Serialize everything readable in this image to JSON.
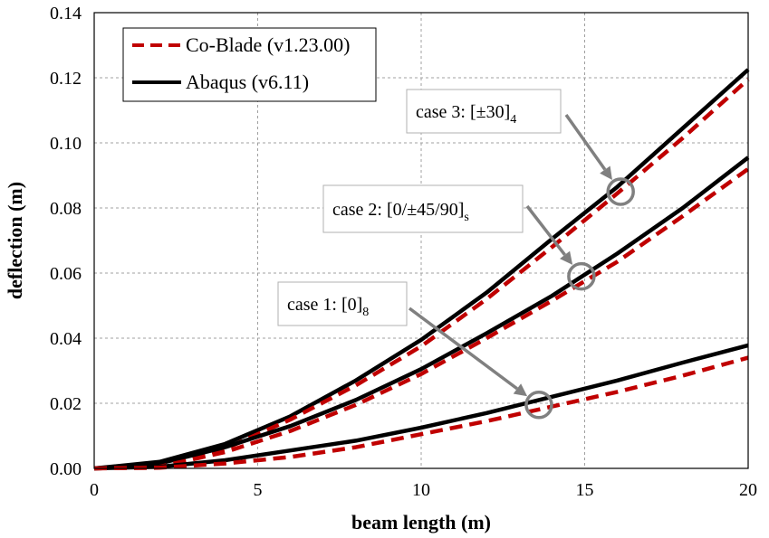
{
  "chart_data": {
    "type": "line",
    "title": "",
    "xlabel": "beam length (m)",
    "ylabel": "deflection (m)",
    "xlim": [
      0,
      20
    ],
    "ylim": [
      0,
      0.14
    ],
    "xticks": [
      "0",
      "5",
      "10",
      "15",
      "20"
    ],
    "yticks": [
      "0.00",
      "0.02",
      "0.04",
      "0.06",
      "0.08",
      "0.10",
      "0.12",
      "0.14"
    ],
    "grid": true,
    "legend_position": "top-left",
    "colors": {
      "coblade": "#c00000",
      "abaqus": "#000000",
      "annotation": "#808080"
    },
    "legend": [
      {
        "label": "Co-Blade (v1.23.00)",
        "style": "dashed",
        "color": "#c00000"
      },
      {
        "label": "Abaqus (v6.11)",
        "style": "solid",
        "color": "#000000"
      }
    ],
    "series": [
      {
        "case": "case 3",
        "source": "Abaqus",
        "color": "#000000",
        "dash": false,
        "x": [
          0,
          2,
          4,
          6,
          8,
          10,
          12,
          14,
          16,
          18,
          20
        ],
        "y": [
          0,
          0.002,
          0.0075,
          0.016,
          0.027,
          0.0395,
          0.054,
          0.0705,
          0.0865,
          0.1045,
          0.1225
        ]
      },
      {
        "case": "case 3",
        "source": "Co-Blade",
        "color": "#c00000",
        "dash": true,
        "x": [
          0,
          2,
          4,
          6,
          8,
          10,
          12,
          14,
          16,
          18,
          20
        ],
        "y": [
          0,
          0.0005,
          0.006,
          0.015,
          0.0255,
          0.0375,
          0.052,
          0.068,
          0.0845,
          0.1015,
          0.1195
        ]
      },
      {
        "case": "case 2",
        "source": "Abaqus",
        "color": "#000000",
        "dash": false,
        "x": [
          0,
          2,
          4,
          6,
          8,
          10,
          12,
          14,
          16,
          18,
          20
        ],
        "y": [
          0,
          0.0015,
          0.0065,
          0.013,
          0.021,
          0.0305,
          0.0415,
          0.053,
          0.066,
          0.08,
          0.0955
        ]
      },
      {
        "case": "case 2",
        "source": "Co-Blade",
        "color": "#c00000",
        "dash": true,
        "x": [
          0,
          2,
          4,
          6,
          8,
          10,
          12,
          14,
          16,
          18,
          20
        ],
        "y": [
          0,
          0.0005,
          0.005,
          0.0115,
          0.0195,
          0.029,
          0.04,
          0.0515,
          0.0635,
          0.0775,
          0.092
        ]
      },
      {
        "case": "case 1",
        "source": "Abaqus",
        "color": "#000000",
        "dash": false,
        "x": [
          0,
          2,
          4,
          6,
          8,
          10,
          12,
          14,
          16,
          18,
          20
        ],
        "y": [
          0,
          0.0005,
          0.0025,
          0.0055,
          0.0085,
          0.0125,
          0.017,
          0.022,
          0.027,
          0.0325,
          0.0378
        ]
      },
      {
        "case": "case 1",
        "source": "Co-Blade",
        "color": "#c00000",
        "dash": true,
        "x": [
          0,
          2,
          4,
          6,
          8,
          10,
          12,
          14,
          16,
          18,
          20
        ],
        "y": [
          0,
          0.0002,
          0.0015,
          0.0035,
          0.0065,
          0.0105,
          0.0145,
          0.019,
          0.0235,
          0.0285,
          0.034
        ]
      }
    ],
    "annotations": [
      {
        "label": "case 3: [±30]",
        "sub": "4",
        "target": {
          "x": 16.1,
          "y": 0.085
        }
      },
      {
        "label": "case 2: [0/±45/90]",
        "sub": "s",
        "target": {
          "x": 14.9,
          "y": 0.059
        }
      },
      {
        "label": "case 1: [0]",
        "sub": "8",
        "target": {
          "x": 13.6,
          "y": 0.0195
        }
      }
    ]
  }
}
